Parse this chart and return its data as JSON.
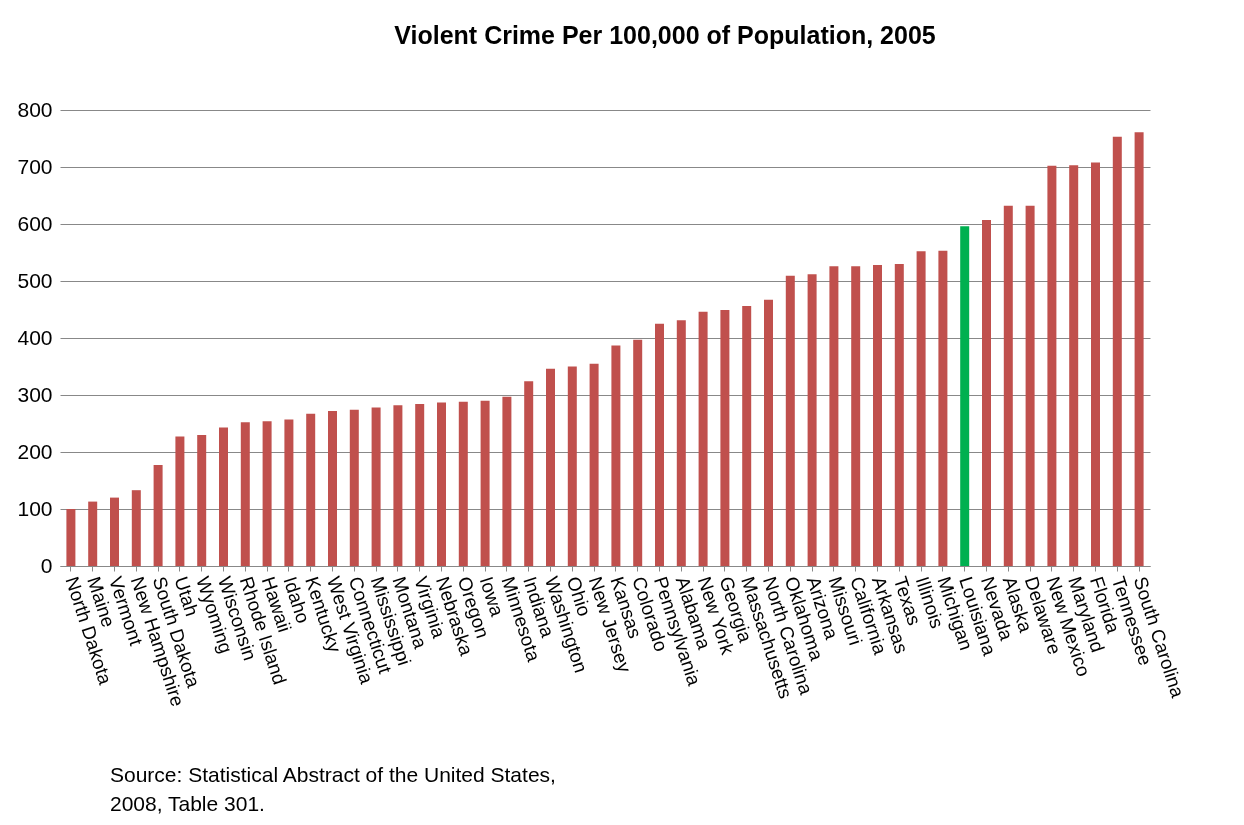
{
  "chart_data": {
    "type": "bar",
    "title": "Violent Crime Per 100,000 of Population, 2005",
    "categories": [
      "North Dakota",
      "Maine",
      "Vermont",
      "New Hampshire",
      "South Dakota",
      "Utah",
      "Wyoming",
      "Wisconsin",
      "Rhode Island",
      "Hawaii",
      "Idaho",
      "Kentucky",
      "West Virginia",
      "Connecticut",
      "Mississippi",
      "Montana",
      "Virginia",
      "Nebraska",
      "Oregon",
      "Iowa",
      "Minnesota",
      "Indiana",
      "Washington",
      "Ohio",
      "New Jersey",
      "Kansas",
      "Colorado",
      "Pennsylvania",
      "Alabama",
      "New York",
      "Georgia",
      "Massachusetts",
      "North Carolina",
      "Oklahoma",
      "Arizona",
      "Missouri",
      "California",
      "Arkansas",
      "Texas",
      "Illinois",
      "Michigan",
      "Louisiana",
      "Nevada",
      "Alaska",
      "Delaware",
      "New Mexico",
      "Maryland",
      "Florida",
      "Tennessee",
      "South Carolina"
    ],
    "values": [
      100,
      113,
      120,
      133,
      177,
      227,
      230,
      243,
      252,
      254,
      257,
      267,
      272,
      274,
      278,
      282,
      284,
      287,
      288,
      290,
      297,
      324,
      346,
      350,
      355,
      387,
      397,
      425,
      431,
      446,
      449,
      456,
      467,
      509,
      512,
      526,
      526,
      528,
      530,
      552,
      553,
      596,
      607,
      632,
      632,
      702,
      703,
      708,
      753,
      761
    ],
    "colors": [
      "#c0504d",
      "#c0504d",
      "#c0504d",
      "#c0504d",
      "#c0504d",
      "#c0504d",
      "#c0504d",
      "#c0504d",
      "#c0504d",
      "#c0504d",
      "#c0504d",
      "#c0504d",
      "#c0504d",
      "#c0504d",
      "#c0504d",
      "#c0504d",
      "#c0504d",
      "#c0504d",
      "#c0504d",
      "#c0504d",
      "#c0504d",
      "#c0504d",
      "#c0504d",
      "#c0504d",
      "#c0504d",
      "#c0504d",
      "#c0504d",
      "#c0504d",
      "#c0504d",
      "#c0504d",
      "#c0504d",
      "#c0504d",
      "#c0504d",
      "#c0504d",
      "#c0504d",
      "#c0504d",
      "#c0504d",
      "#c0504d",
      "#c0504d",
      "#c0504d",
      "#c0504d",
      "#00b050",
      "#c0504d",
      "#c0504d",
      "#c0504d",
      "#c0504d",
      "#c0504d",
      "#c0504d",
      "#c0504d",
      "#c0504d"
    ],
    "ylim": [
      0,
      800
    ],
    "yticks": [
      0,
      100,
      200,
      300,
      400,
      500,
      600,
      700,
      800
    ],
    "grid": "y",
    "annotations": [
      "Source: Statistical Abstract of the United States, 2008, Table 301."
    ]
  }
}
